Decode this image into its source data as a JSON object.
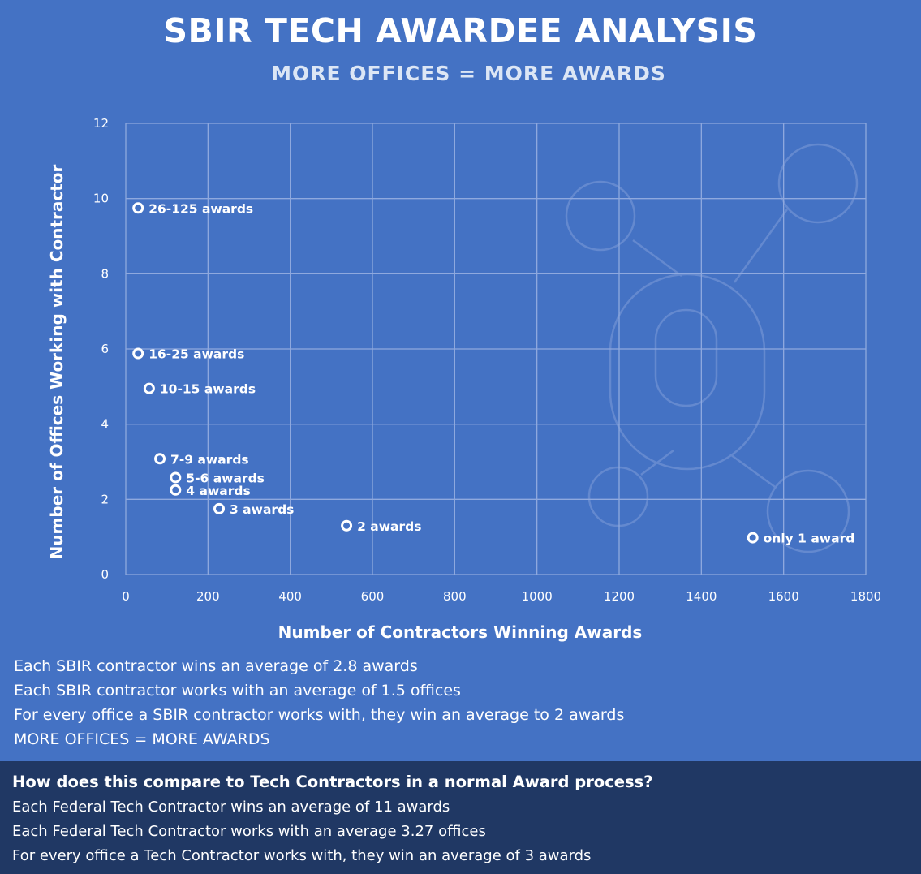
{
  "header": {
    "title": "SBIR TECH AWARDEE ANALYSIS",
    "subtitle": "MORE OFFICES = MORE AWARDS"
  },
  "chart_data": {
    "type": "scatter",
    "title": "",
    "xlabel": "Number of Contractors Winning Awards",
    "ylabel": "Number of Offices Working with Contractor",
    "xlim": [
      0,
      1800
    ],
    "ylim": [
      0,
      12
    ],
    "xticks": [
      0,
      200,
      400,
      600,
      800,
      1000,
      1200,
      1400,
      1600,
      1800
    ],
    "yticks": [
      0,
      2,
      4,
      6,
      8,
      10,
      12
    ],
    "grid": true,
    "points": [
      {
        "label": "26-125 awards",
        "x": 30,
        "y": 9.75
      },
      {
        "label": "16-25 awards",
        "x": 30,
        "y": 5.88
      },
      {
        "label": "10-15 awards",
        "x": 57,
        "y": 4.95
      },
      {
        "label": "7-9 awards",
        "x": 83,
        "y": 3.08
      },
      {
        "label": "5-6 awards",
        "x": 121,
        "y": 2.58
      },
      {
        "label": "4 awards",
        "x": 121,
        "y": 2.25
      },
      {
        "label": "3 awards",
        "x": 227,
        "y": 1.75
      },
      {
        "label": "2 awards",
        "x": 537,
        "y": 1.3
      },
      {
        "label": "only 1 award",
        "x": 1525,
        "y": 0.98
      }
    ],
    "colors": {
      "background": "#4472c4",
      "grid": "#8fa9de",
      "marker": "#ffffff",
      "text": "#ffffff"
    }
  },
  "notes": [
    "Each SBIR contractor wins an average of 2.8 awards",
    "Each SBIR contractor works with an average of 1.5 offices",
    "For every office a SBIR contractor works with, they win an average to 2 awards",
    "MORE OFFICES = MORE AWARDS"
  ],
  "comparison": {
    "heading": "How does this compare to Tech Contractors in a normal Award process?",
    "lines": [
      "Each Federal Tech Contractor wins an average of 11 awards",
      "Each Federal Tech Contractor works with an average 3.27 offices",
      "For every office a Tech Contractor works with, they win an average of 3 awards"
    ]
  }
}
